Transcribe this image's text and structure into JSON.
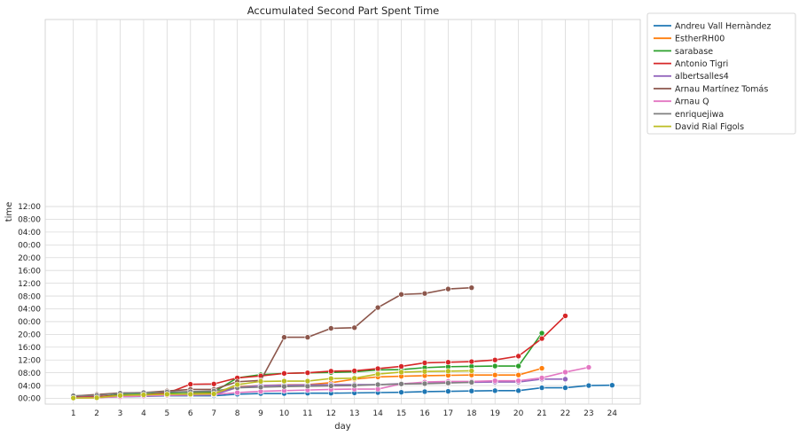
{
  "chart_data": {
    "type": "line",
    "title": "Accumulated Second Part Spent Time",
    "xlabel": "day",
    "ylabel": "time",
    "x_ticks": [
      1,
      2,
      3,
      4,
      5,
      6,
      7,
      8,
      9,
      10,
      11,
      12,
      13,
      14,
      15,
      16,
      17,
      18,
      19,
      20,
      21,
      22,
      23,
      24
    ],
    "xlim": [
      -0.2,
      25.2
    ],
    "y_unit": "hours",
    "ylim": [
      -1.8,
      118.5
    ],
    "y_ticks": [
      {
        "value": 0,
        "label": "00:00"
      },
      {
        "value": 4,
        "label": "04:00"
      },
      {
        "value": 8,
        "label": "08:00"
      },
      {
        "value": 12,
        "label": "12:00"
      },
      {
        "value": 16,
        "label": "16:00"
      },
      {
        "value": 20,
        "label": "20:00"
      },
      {
        "value": 24,
        "label": "00:00"
      },
      {
        "value": 28,
        "label": "04:00"
      },
      {
        "value": 32,
        "label": "08:00"
      },
      {
        "value": 36,
        "label": "12:00"
      },
      {
        "value": 40,
        "label": "16:00"
      },
      {
        "value": 44,
        "label": "20:00"
      },
      {
        "value": 48,
        "label": "00:00"
      },
      {
        "value": 52,
        "label": "04:00"
      },
      {
        "value": 56,
        "label": "08:00"
      },
      {
        "value": 60,
        "label": "12:00"
      }
    ],
    "grid": true,
    "legend_position": "outside-top-right",
    "series": [
      {
        "name": "Andreu Vall Hernàndez",
        "color": "#1f77b4",
        "x": [
          1,
          2,
          3,
          4,
          5,
          6,
          7,
          8,
          9,
          10,
          11,
          12,
          13,
          14,
          15,
          16,
          17,
          18,
          19,
          20,
          21,
          22,
          23,
          24
        ],
        "y": [
          0.2,
          0.3,
          0.5,
          0.6,
          0.8,
          0.8,
          0.8,
          1.3,
          1.5,
          1.5,
          1.6,
          1.6,
          1.7,
          1.8,
          1.9,
          2.1,
          2.2,
          2.3,
          2.4,
          2.4,
          3.3,
          3.3,
          4.0,
          4.1
        ]
      },
      {
        "name": "EstherRH00",
        "color": "#ff7f0e",
        "x": [
          1,
          2,
          3,
          4,
          5,
          6,
          7,
          8,
          9,
          10,
          11,
          12,
          13,
          14,
          15,
          16,
          17,
          18,
          19,
          20,
          21
        ],
        "y": [
          0.1,
          0.2,
          0.7,
          1.0,
          1.1,
          1.4,
          1.6,
          3.6,
          4.0,
          4.2,
          4.3,
          4.9,
          6.0,
          6.7,
          6.9,
          7.1,
          7.2,
          7.3,
          7.3,
          7.3,
          9.4
        ]
      },
      {
        "name": "sarabase",
        "color": "#2ca02c",
        "x": [
          1,
          2,
          3,
          4,
          5,
          6,
          7,
          8,
          9,
          10,
          11,
          12,
          13,
          14,
          15,
          16,
          17,
          18,
          19,
          20,
          21
        ],
        "y": [
          0.3,
          0.4,
          1.2,
          1.3,
          1.7,
          1.9,
          2.0,
          6.4,
          7.4,
          7.8,
          8.0,
          8.1,
          8.3,
          8.9,
          9.0,
          9.6,
          9.9,
          10.0,
          10.1,
          10.1,
          20.4
        ]
      },
      {
        "name": "Antonio Tigri",
        "color": "#d62728",
        "x": [
          1,
          2,
          3,
          4,
          5,
          6,
          7,
          8,
          9,
          10,
          11,
          12,
          13,
          14,
          15,
          16,
          17,
          18,
          19,
          20,
          21,
          22
        ],
        "y": [
          0.4,
          0.5,
          0.9,
          1.1,
          1.6,
          4.4,
          4.5,
          6.4,
          7.0,
          7.8,
          8.0,
          8.5,
          8.6,
          9.3,
          10.0,
          11.1,
          11.3,
          11.5,
          12.0,
          13.2,
          18.7,
          25.8
        ]
      },
      {
        "name": "albertsalles4",
        "color": "#9467bd",
        "x": [
          1,
          2,
          3,
          4,
          5,
          6,
          7,
          8,
          9,
          10,
          11,
          12,
          13,
          14,
          15,
          16,
          17,
          18,
          19,
          20,
          21,
          22
        ],
        "y": [
          0.2,
          0.3,
          0.6,
          0.8,
          0.9,
          1.0,
          1.1,
          3.4,
          4.0,
          4.1,
          4.2,
          4.3,
          4.3,
          4.3,
          4.6,
          4.8,
          5.0,
          5.0,
          5.1,
          5.1,
          6.0,
          6.0
        ]
      },
      {
        "name": "Arnau Martínez Tomás",
        "color": "#8c564b",
        "x": [
          1,
          2,
          3,
          4,
          5,
          6,
          7,
          8,
          9,
          10,
          11,
          12,
          13,
          14,
          15,
          16,
          17,
          18
        ],
        "y": [
          0.7,
          1.2,
          1.7,
          1.8,
          2.3,
          2.8,
          2.8,
          5.2,
          5.6,
          19.1,
          19.1,
          21.9,
          22.1,
          28.4,
          32.5,
          32.8,
          34.2,
          34.6
        ]
      },
      {
        "name": "Arnau Q",
        "color": "#e377c2",
        "x": [
          1,
          2,
          3,
          4,
          5,
          6,
          7,
          8,
          9,
          10,
          11,
          12,
          13,
          14,
          15,
          16,
          17,
          18,
          19,
          20,
          21,
          22,
          23
        ],
        "y": [
          0.1,
          0.2,
          0.5,
          0.7,
          1.0,
          1.1,
          1.2,
          1.8,
          2.2,
          2.4,
          2.6,
          2.8,
          2.9,
          2.9,
          4.5,
          5.1,
          5.3,
          5.3,
          5.5,
          5.5,
          6.4,
          8.2,
          9.7
        ]
      },
      {
        "name": "enriquejiwa",
        "color": "#7f7f7f",
        "x": [
          1,
          2,
          3,
          4,
          5,
          6,
          7,
          8,
          9,
          10,
          11,
          12,
          13,
          14,
          15,
          16,
          17,
          18
        ],
        "y": [
          0.8,
          0.9,
          1.6,
          1.8,
          2.0,
          2.1,
          2.3,
          3.3,
          3.5,
          3.7,
          3.8,
          3.9,
          4.0,
          4.3,
          4.5,
          4.6,
          4.8,
          5.0
        ]
      },
      {
        "name": "David Rial Figols",
        "color": "#bcbd22",
        "x": [
          1,
          2,
          3,
          4,
          5,
          6,
          7,
          8,
          9,
          10,
          11,
          12,
          13,
          14,
          15,
          16,
          17,
          18
        ],
        "y": [
          0.1,
          0.2,
          0.9,
          1.1,
          1.3,
          1.3,
          1.4,
          4.3,
          5.3,
          5.4,
          5.4,
          6.2,
          6.3,
          7.6,
          8.2,
          8.4,
          8.5,
          8.6
        ]
      }
    ]
  }
}
